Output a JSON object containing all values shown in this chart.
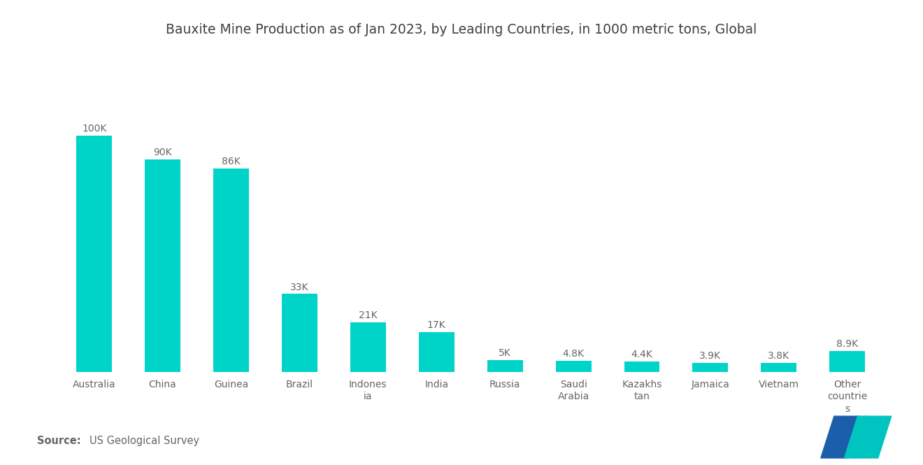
{
  "title": "Bauxite Mine Production as of Jan 2023, by Leading Countries, in 1000 metric tons, Global",
  "categories": [
    "Australia",
    "China",
    "Guinea",
    "Brazil",
    "Indones-\nia",
    "India",
    "Russia",
    "Saudi\nArabia",
    "Kazakhs-\ntan",
    "Jamaica",
    "Vietnam",
    "Other\ncountrie-\ns"
  ],
  "tick_labels": [
    "Australia",
    "China",
    "Guinea",
    "Brazil",
    "Indones\nia",
    "India",
    "Russia",
    "Saudi\nArabia",
    "Kazakhs\ntan",
    "Jamaica",
    "Vietnam",
    "Other\ncountrie\ns"
  ],
  "values": [
    100000,
    90000,
    86000,
    33000,
    21000,
    17000,
    5000,
    4800,
    4400,
    3900,
    3800,
    8900
  ],
  "labels": [
    "100K",
    "90K",
    "86K",
    "33K",
    "21K",
    "17K",
    "5K",
    "4.8K",
    "4.4K",
    "3.9K",
    "3.8K",
    "8.9K"
  ],
  "bar_color": "#00D4C8",
  "background_color": "#FFFFFF",
  "title_color": "#404040",
  "label_color": "#666666",
  "source_bold": "Source:",
  "source_normal": "  US Geological Survey",
  "logo_blue": "#1B5FAA",
  "logo_teal": "#00C4C0",
  "ylim": [
    0,
    118000
  ],
  "bar_width": 0.52
}
